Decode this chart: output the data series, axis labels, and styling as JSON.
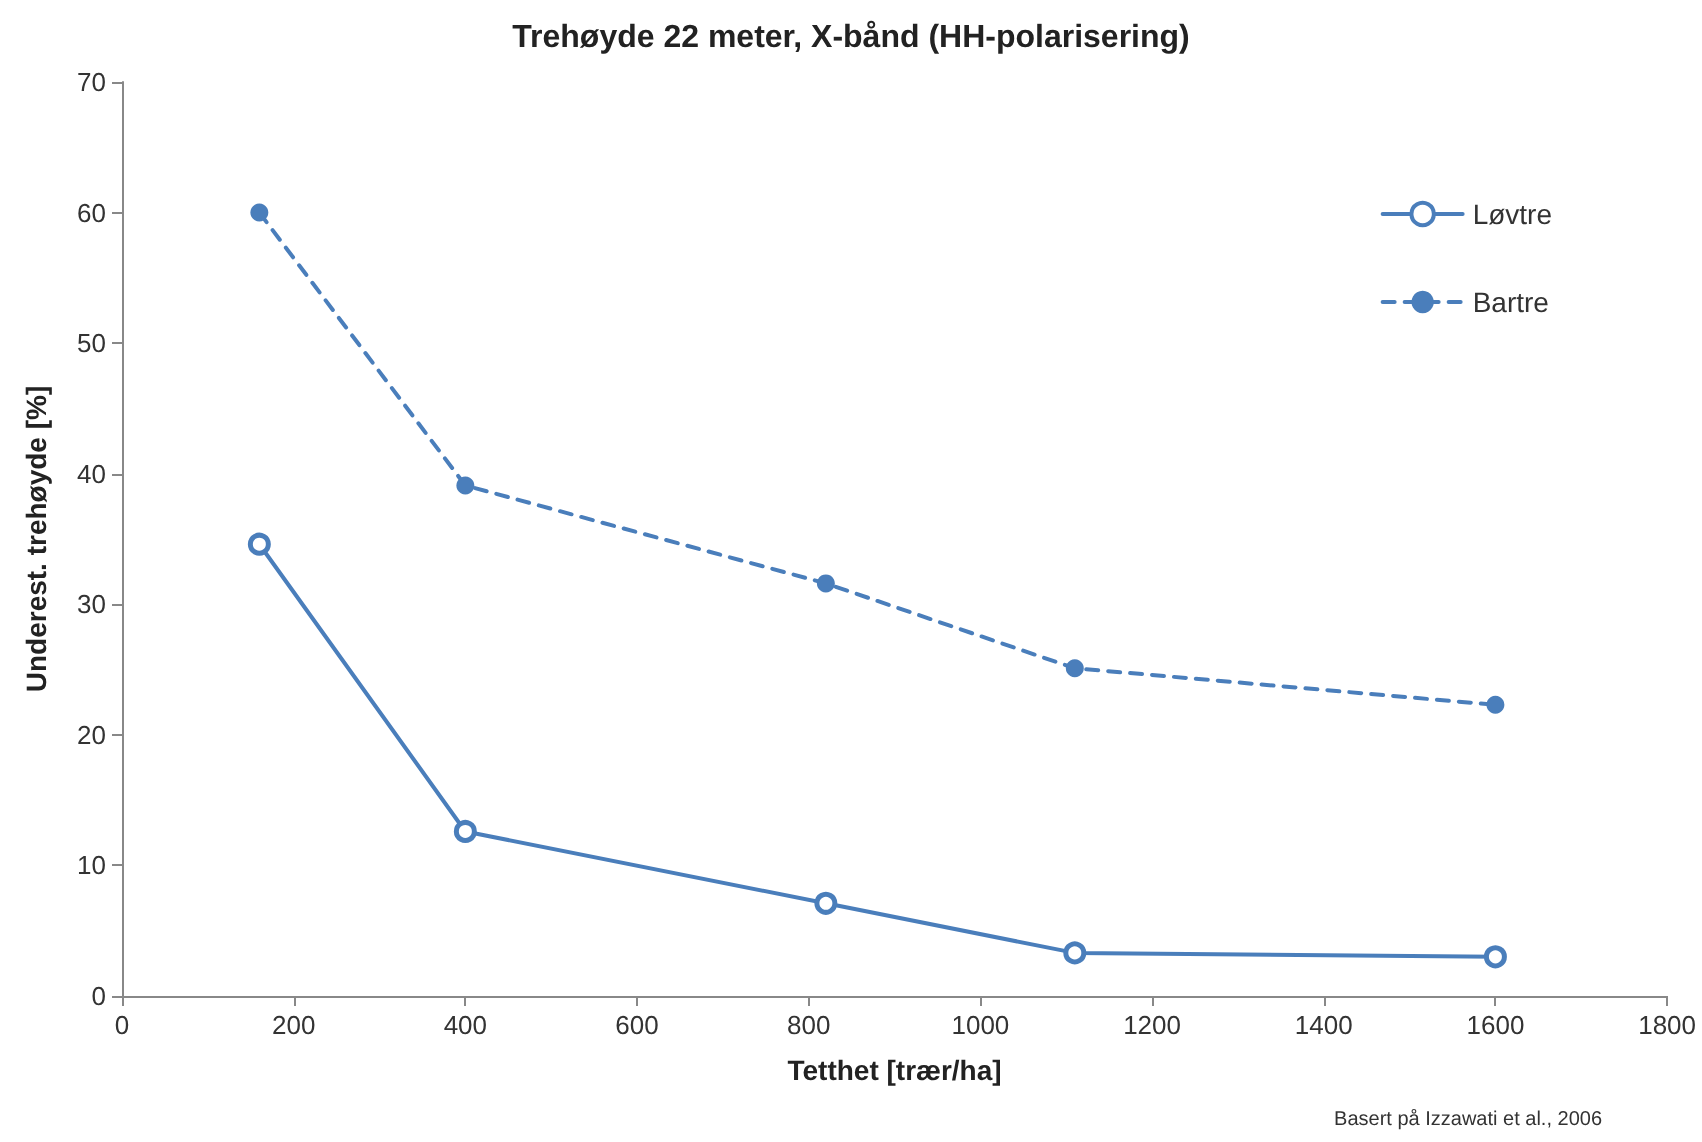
{
  "chart_data": {
    "type": "line",
    "title": "Trehøyde 22 meter, X-bånd (HH-polarisering)",
    "xlabel": "Tetthet [trær/ha]",
    "ylabel": "Underest. trehøyde [%]",
    "x": [
      160,
      400,
      820,
      1110,
      1600
    ],
    "series": [
      {
        "name": "Løvtre",
        "color": "#4a7ebb",
        "values": [
          34.6,
          12.6,
          7.1,
          3.3,
          3.0
        ],
        "line_style": "solid"
      },
      {
        "name": "Bartre",
        "color": "#4a7ebb",
        "values": [
          60.0,
          39.1,
          31.6,
          25.1,
          22.3
        ],
        "line_style": "dashed"
      }
    ],
    "xlim": [
      0,
      1800
    ],
    "xticks": [
      0,
      200,
      400,
      600,
      800,
      1000,
      1200,
      1400,
      1600,
      1800
    ],
    "ylim": [
      0,
      70
    ],
    "yticks": [
      0,
      10,
      20,
      30,
      40,
      50,
      60,
      70
    ],
    "grid": false,
    "legend": "top right",
    "marker": "circle",
    "annotations": [
      "Basert på Izzawati et al., 2006"
    ]
  }
}
